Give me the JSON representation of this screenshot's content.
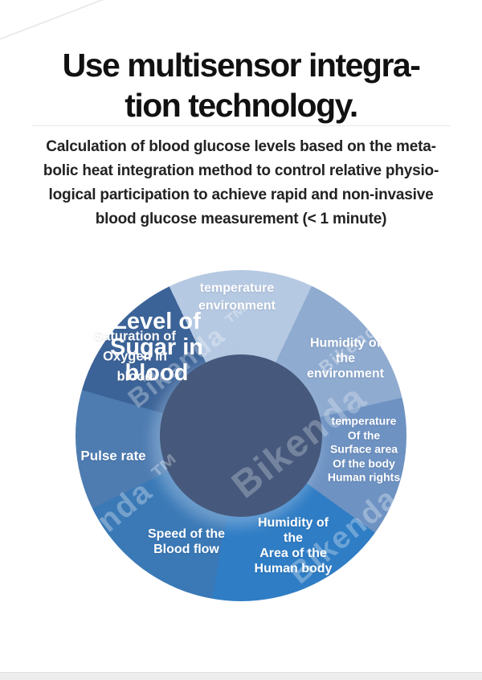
{
  "header": {
    "title_line1": "Use multisensor integra-",
    "title_line2": "tion technology.",
    "paragraph_line1": "Calculation of blood glucose levels based on the meta-",
    "paragraph_line2": "bolic heat integration method to control relative physio-",
    "paragraph_line3": "logical participation to achieve rapid and non-invasive",
    "paragraph_line4": "blood glucose measurement (< 1 minute)"
  },
  "diagram": {
    "center": {
      "line1": "Level of",
      "line2": "Sugar in",
      "line3": "blood"
    },
    "segments": [
      {
        "id": "temperature-environment",
        "lines": [
          "temperature",
          "environment"
        ]
      },
      {
        "id": "humidity-environment",
        "lines": [
          "Humidity of",
          "the",
          "environment"
        ]
      },
      {
        "id": "temperature-body-surface",
        "lines": [
          "temperature",
          "Of the",
          "Surface area",
          "Of the body",
          "Human rights"
        ]
      },
      {
        "id": "humidity-body-area",
        "lines": [
          "Humidity of",
          "the",
          "Area of the",
          "Human body"
        ]
      },
      {
        "id": "speed-blood-flow",
        "lines": [
          "Speed of the",
          "Blood flow"
        ]
      },
      {
        "id": "pulse-rate",
        "lines": [
          "Pulse rate"
        ]
      },
      {
        "id": "oxygen-saturation",
        "lines": [
          "Saturation of",
          "Oxygen in",
          "blood"
        ]
      }
    ]
  },
  "watermark": {
    "text": "Bikenda ™",
    "short": "Bikenda"
  },
  "colors": {
    "seg-temp-env": "#b6c9e2",
    "seg-hum-env": "#8fabd0",
    "seg-temp-surf": "#6e92c2",
    "seg-hum-area": "#2f7dc5",
    "seg-speed": "#3a79b6",
    "seg-pulse": "#4e7cb1",
    "seg-satur": "#3c6397",
    "center-circle": "#46597c",
    "title-text": "#111111",
    "body-text": "#222222",
    "label-text": "#ffffff",
    "band-gray": "#ededed"
  }
}
